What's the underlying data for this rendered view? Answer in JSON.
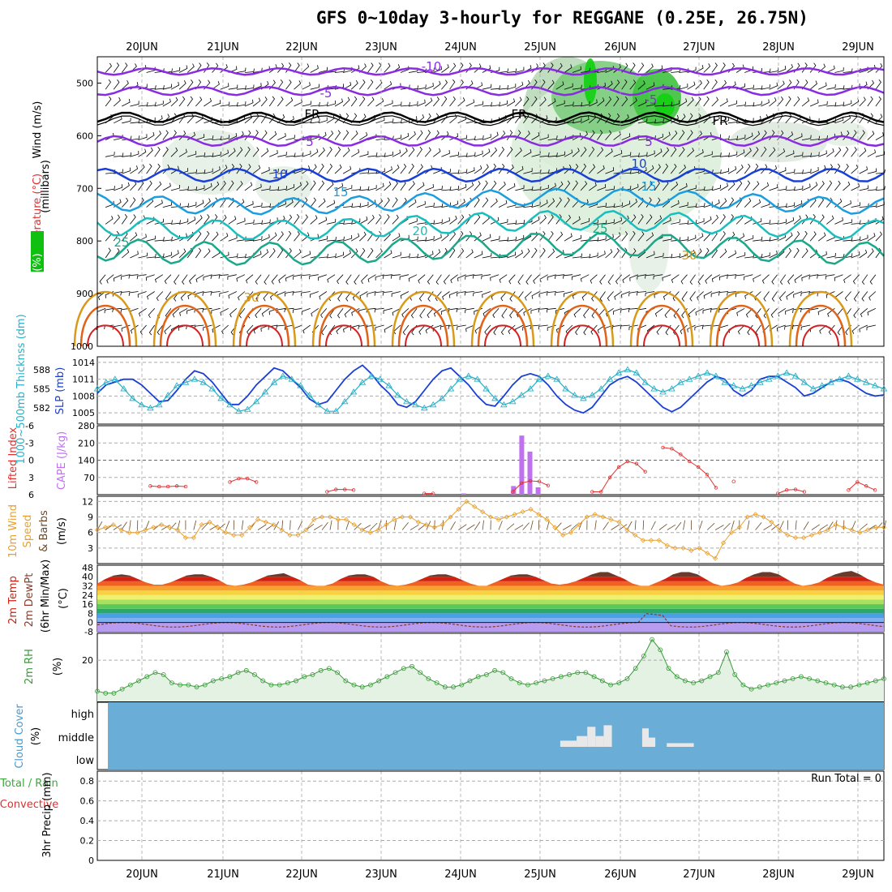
{
  "title": "GFS 0~10day 3-hourly for REGGANE (0.25E, 26.75N)",
  "dates": [
    "20JUN",
    "21JUN",
    "22JUN",
    "23JUN",
    "24JUN",
    "25JUN",
    "26JUN",
    "27JUN",
    "28JUN",
    "29JUN"
  ],
  "colors": {
    "cold": "#8a2be2",
    "fr": "#000000",
    "t10": "#1a3fd6",
    "t15": "#1a9ee0",
    "t20": "#19bfbf",
    "t25": "#1aa88a",
    "t30": "#d99a1a",
    "t35": "#e0631a",
    "t40": "#d42020",
    "rh": "#4fc44f",
    "grid": "#aaaaaa"
  },
  "chart_data": [
    {
      "type": "heatmap",
      "ylabel_rh": "RH (%)",
      "ylabel_temp": "Temperature (°C)",
      "ylabel_wind": "Wind (m/s)",
      "ylabel_p": "(millibars)",
      "yticks": [
        "500",
        "600",
        "700",
        "800",
        "900",
        "1000"
      ],
      "ylim": [
        1000,
        450
      ],
      "contour_labels": [
        "-10",
        "-5",
        "FR",
        "5",
        "10",
        "15",
        "20",
        "25",
        "30"
      ]
    },
    {
      "type": "line",
      "ylabel_left": "1000~500mb Thicknss (dm)",
      "ylabel_right": "SLP (mb)",
      "yticks_left": [
        "588",
        "585",
        "582"
      ],
      "yticks_right": [
        "1014",
        "1011",
        "1008",
        "1005"
      ],
      "series": [
        {
          "name": "SLP",
          "values": [
            1008.5,
            1010,
            1010.5,
            1011,
            1011,
            1010,
            1008.5,
            1007,
            1007.2,
            1009,
            1011,
            1012.5,
            1012,
            1010.5,
            1008.5,
            1006.5,
            1006.5,
            1008,
            1010,
            1011.5,
            1013,
            1012.5,
            1011,
            1009.5,
            1007.5,
            1006.5,
            1007,
            1009,
            1011,
            1012.5,
            1013.5,
            1012,
            1010,
            1008.5,
            1006.5,
            1006,
            1007,
            1009,
            1011,
            1012.5,
            1013,
            1011.5,
            1010,
            1008,
            1006.5,
            1006.2,
            1008,
            1010,
            1011.5,
            1012,
            1011.5,
            1010,
            1008,
            1006.5,
            1005.5,
            1005,
            1006,
            1008,
            1010,
            1011,
            1011.5,
            1010.5,
            1009,
            1007.5,
            1006,
            1005.2,
            1006,
            1007.5,
            1009,
            1010.5,
            1011.5,
            1011,
            1009,
            1008,
            1009,
            1011,
            1011.5,
            1011.5,
            1010.5,
            1009.5,
            1008,
            1008.5,
            1009.5,
            1010.5,
            1011,
            1010.5,
            1009.5,
            1008.5,
            1008,
            1008.2
          ]
        },
        {
          "name": "Thickness",
          "values": [
            585,
            586,
            586.5,
            585,
            583.5,
            582.5,
            582,
            582.5,
            584,
            585.5,
            586,
            586.5,
            586,
            585,
            583.5,
            582.5,
            581.5,
            581.8,
            583,
            584.5,
            586,
            587,
            586.5,
            585.5,
            584,
            582.5,
            581.5,
            581.5,
            583,
            584.5,
            586,
            587,
            586.5,
            585.5,
            584,
            583,
            582.5,
            582,
            582.5,
            583.5,
            585,
            586.5,
            587,
            586.5,
            585,
            583.5,
            582.5,
            583,
            584,
            585,
            586.5,
            587,
            586.5,
            585,
            584,
            583.5,
            584,
            585,
            586.5,
            587.5,
            588,
            587.5,
            586,
            585,
            584.5,
            585,
            586,
            586.5,
            587,
            587.5,
            587,
            586,
            585.5,
            585,
            585.5,
            586,
            586.5,
            587,
            587.5,
            587,
            586,
            585,
            585.5,
            586,
            586.5,
            587,
            586.5,
            586,
            585.5,
            585
          ]
        }
      ]
    },
    {
      "type": "bar",
      "ylabel_left": "Lifted Index",
      "ylabel_right": "CAPE (J/kg)",
      "yticks_left": [
        "-6",
        "-3",
        "0",
        "3",
        "6"
      ],
      "yticks_right": [
        "280",
        "210",
        "140",
        "70"
      ],
      "series": [
        {
          "name": "Lifted Index",
          "values": [
            null,
            null,
            null,
            null,
            null,
            null,
            4.5,
            4.6,
            4.6,
            4.5,
            4.6,
            null,
            null,
            null,
            null,
            3.8,
            3.2,
            3.2,
            3.8,
            null,
            null,
            null,
            null,
            null,
            null,
            null,
            5.5,
            5.1,
            5.1,
            5.2,
            null,
            null,
            null,
            null,
            null,
            null,
            null,
            5.8,
            5.8,
            null,
            null,
            null,
            null,
            null,
            null,
            null,
            null,
            5.5,
            4,
            3.6,
            3.7,
            4.4,
            null,
            null,
            null,
            null,
            5.5,
            5.5,
            3,
            1.2,
            0.2,
            0.6,
            2,
            null,
            -2.2,
            -2,
            -1,
            0.2,
            1.2,
            2.5,
            4.8,
            null,
            3.7,
            null,
            null,
            null,
            null,
            5.8,
            5.2,
            5.1,
            5.5,
            null,
            null,
            null,
            null,
            5.2,
            3.8,
            4.5,
            5.2,
            null
          ]
        },
        {
          "name": "CAPE",
          "values": [
            0,
            0,
            0,
            0,
            0,
            0,
            0,
            0,
            0,
            0,
            0,
            0,
            0,
            0,
            0,
            0,
            0,
            0,
            0,
            0,
            0,
            0,
            0,
            0,
            0,
            0,
            0,
            0,
            0,
            0,
            0,
            0,
            0,
            0,
            0,
            0,
            0,
            0,
            0,
            0,
            0,
            0,
            0,
            0,
            0,
            0,
            0,
            0,
            0,
            0,
            0,
            0,
            0,
            0,
            0,
            0,
            0,
            0,
            0,
            0,
            0,
            0,
            0,
            0,
            0,
            0,
            0,
            0,
            0,
            0,
            0,
            0,
            0,
            0,
            0,
            0,
            0,
            0,
            0,
            0,
            0,
            0,
            0,
            0,
            0,
            0,
            0,
            0,
            0,
            0,
            0
          ]
        }
      ],
      "cape_bars": [
        {
          "x": 44.7,
          "v": 5
        },
        {
          "x": 50.8,
          "v": 35
        },
        {
          "x": 51.8,
          "v": 240
        },
        {
          "x": 52.8,
          "v": 175
        },
        {
          "x": 53.8,
          "v": 30
        }
      ]
    },
    {
      "type": "line",
      "ylabel": "10m Wind Speed & Barbs (m/s)",
      "yticks": [
        "12",
        "9",
        "6",
        "3"
      ],
      "series": [
        {
          "name": "Speed",
          "values": [
            6.5,
            7,
            7.5,
            6.5,
            6,
            6,
            6.5,
            7,
            7.5,
            7,
            6.5,
            5,
            5,
            7.5,
            8,
            7,
            6,
            5.5,
            5.5,
            7,
            8.5,
            8,
            7.5,
            6.5,
            5.5,
            5.5,
            6.5,
            8.5,
            9,
            9,
            8.5,
            8.5,
            7.5,
            6.5,
            6,
            6.5,
            7.5,
            8.5,
            9,
            9,
            8,
            7.5,
            7,
            7.5,
            9,
            10.5,
            12,
            11,
            10,
            9,
            8.5,
            9,
            9.5,
            10,
            10.5,
            9.5,
            8.5,
            7,
            5.5,
            6,
            7.5,
            9,
            9.5,
            9,
            8.5,
            8,
            6.5,
            5.5,
            4.5,
            4.5,
            4.5,
            3.5,
            3,
            3,
            2.5,
            3,
            2,
            1,
            4,
            6,
            7,
            9,
            9.5,
            9,
            8,
            6.5,
            5.5,
            5,
            5,
            5.5,
            6,
            6.5,
            7.5,
            7,
            6.5,
            6,
            6.5,
            7,
            7
          ]
        }
      ]
    },
    {
      "type": "area",
      "ylabel": "2m Temp 2m DewPt (6hr Min/Max) (°C)",
      "yticks": [
        "48",
        "40",
        "32",
        "24",
        "16",
        "8",
        "0",
        "-8"
      ],
      "temp_max": [
        34,
        38,
        41,
        42,
        41,
        38,
        35,
        33,
        33,
        35,
        38,
        41,
        42,
        42,
        40,
        37,
        33,
        32,
        33,
        35,
        38,
        41,
        42,
        43,
        40,
        37,
        33,
        32,
        32,
        34,
        38,
        41,
        42,
        42,
        40,
        36,
        33,
        32,
        33,
        35,
        38,
        41,
        42,
        42,
        40,
        37,
        34,
        32,
        32,
        35,
        38,
        41,
        42,
        42,
        40,
        37,
        34,
        33,
        34,
        36,
        39,
        42,
        44,
        44,
        41,
        38,
        34,
        32,
        32,
        35,
        38,
        42,
        44,
        44,
        42,
        38,
        34,
        32,
        33,
        35,
        39,
        42,
        44,
        44,
        42,
        38,
        34,
        32,
        33,
        35,
        39,
        42,
        44,
        45,
        42,
        38,
        35,
        33
      ]
    },
    {
      "type": "line",
      "ylabel": "2m RH (%)",
      "yticks": [
        "20"
      ],
      "series": [
        {
          "name": "RH",
          "values": [
            5,
            4,
            4,
            6,
            8,
            10,
            12,
            14,
            13,
            9,
            8,
            8,
            7,
            8,
            10,
            11,
            12,
            14,
            15,
            13,
            10,
            8,
            8,
            9,
            10,
            12,
            13,
            15,
            16,
            14,
            10,
            8,
            7,
            8,
            10,
            12,
            14,
            16,
            17,
            14,
            11,
            9,
            7,
            7,
            8,
            10,
            12,
            13,
            15,
            14,
            11,
            9,
            8,
            9,
            10,
            11,
            12,
            13,
            14,
            14,
            12,
            10,
            8,
            9,
            11,
            16,
            22,
            30,
            25,
            16,
            12,
            10,
            9,
            10,
            12,
            14,
            24,
            13,
            8,
            6,
            7,
            8,
            9,
            10,
            11,
            12,
            11,
            10,
            9,
            8,
            7,
            7,
            8,
            9,
            10,
            11
          ]
        }
      ]
    },
    {
      "type": "heatmap",
      "ylabel": "Cloud Cover (%)",
      "levels": [
        "high",
        "middle",
        "low"
      ],
      "segments": [
        {
          "from": 56.5,
          "to": 58.5,
          "h": 0.2
        },
        {
          "from": 58.5,
          "to": 59.8,
          "h": 0.35
        },
        {
          "from": 59.8,
          "to": 60.8,
          "h": 0.65
        },
        {
          "from": 60.8,
          "to": 61.8,
          "h": 0.35
        },
        {
          "from": 61.8,
          "to": 62.8,
          "h": 0.7
        },
        {
          "from": 66.5,
          "to": 67.3,
          "h": 0.6
        },
        {
          "from": 67.3,
          "to": 68.1,
          "h": 0.3
        },
        {
          "from": 69.5,
          "to": 72.8,
          "h": 0.12
        }
      ]
    },
    {
      "type": "bar",
      "ylabel": "3hr Precip (mm)",
      "ylabel_total": "Total / Rain",
      "ylabel_conv": "Convective",
      "yticks": [
        "0.8",
        "0.6",
        "0.4",
        "0.2",
        "0"
      ],
      "run_total": "Run Total = 0",
      "values": []
    }
  ]
}
